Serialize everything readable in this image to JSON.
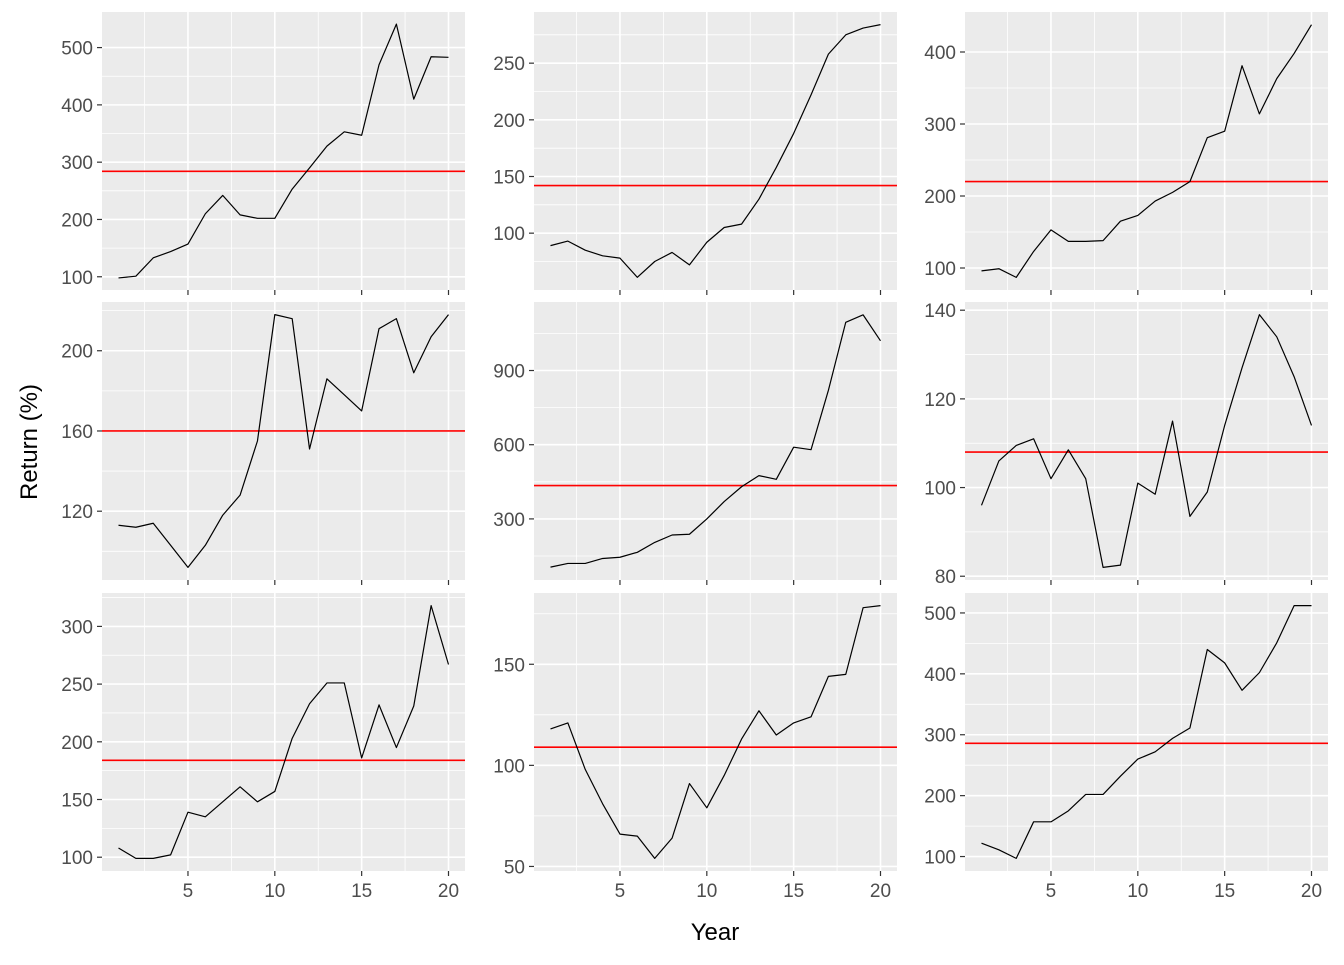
{
  "axis_titles": {
    "x": "Year",
    "y": "Return (%)"
  },
  "colors": {
    "panel_bg": "#ebebeb",
    "grid": "#ffffff",
    "line": "#000000",
    "mean_line": "#ff0000",
    "tick_text": "#4d4d4d",
    "tick_mark": "#333333"
  },
  "chart_data": [
    {
      "type": "line",
      "x": [
        1,
        2,
        3,
        4,
        5,
        6,
        7,
        8,
        9,
        10,
        11,
        12,
        13,
        14,
        15,
        16,
        17,
        18,
        19,
        20
      ],
      "y": [
        98,
        101,
        133,
        144,
        157,
        210,
        242,
        208,
        202,
        202,
        253,
        290,
        328,
        353,
        347,
        470,
        541,
        410,
        484,
        483
      ],
      "mean_line": 284,
      "xlim": [
        0.05,
        20.95
      ],
      "ylim": [
        76.9,
        562.1
      ],
      "xticks": [
        5,
        10,
        15,
        20
      ],
      "xticks_minor": [
        2.5,
        7.5,
        12.5,
        17.5
      ],
      "yticks": [
        100,
        200,
        300,
        400,
        500
      ],
      "yticks_minor": [
        150,
        250,
        350,
        450
      ],
      "ytick_labels": [
        "100",
        "200",
        "300",
        "400",
        "500"
      ],
      "xtick_labels": []
    },
    {
      "type": "line",
      "x": [
        1,
        2,
        3,
        4,
        5,
        6,
        7,
        8,
        9,
        10,
        11,
        12,
        13,
        14,
        15,
        16,
        17,
        18,
        19,
        20
      ],
      "y": [
        89,
        93,
        85,
        80,
        78,
        61,
        75,
        83,
        72,
        92,
        105,
        108,
        130,
        158,
        188,
        222,
        258,
        275,
        281,
        284
      ],
      "mean_line": 142,
      "xlim": [
        0.05,
        20.95
      ],
      "ylim": [
        49.85,
        295.15
      ],
      "xticks": [
        5,
        10,
        15,
        20
      ],
      "xticks_minor": [
        2.5,
        7.5,
        12.5,
        17.5
      ],
      "yticks": [
        100,
        150,
        200,
        250
      ],
      "yticks_minor": [
        75,
        125,
        175,
        225,
        275
      ],
      "ytick_labels": [
        "100",
        "150",
        "200",
        "250"
      ],
      "xtick_labels": []
    },
    {
      "type": "line",
      "x": [
        1,
        2,
        3,
        4,
        5,
        6,
        7,
        8,
        9,
        10,
        11,
        12,
        13,
        14,
        15,
        16,
        17,
        18,
        19,
        20
      ],
      "y": [
        96,
        99,
        87,
        123,
        153,
        137,
        137,
        138,
        165,
        173,
        193,
        205,
        220,
        281,
        290,
        381,
        314,
        363,
        398,
        438
      ],
      "mean_line": 220,
      "xlim": [
        0.05,
        20.95
      ],
      "ylim": [
        69.45,
        455.55
      ],
      "xticks": [
        5,
        10,
        15,
        20
      ],
      "xticks_minor": [
        2.5,
        7.5,
        12.5,
        17.5
      ],
      "yticks": [
        100,
        200,
        300,
        400
      ],
      "yticks_minor": [
        150,
        250,
        350
      ],
      "ytick_labels": [
        "100",
        "200",
        "300",
        "400"
      ],
      "xtick_labels": []
    },
    {
      "type": "line",
      "x": [
        1,
        2,
        3,
        4,
        5,
        6,
        7,
        8,
        9,
        10,
        11,
        12,
        13,
        14,
        15,
        16,
        17,
        18,
        19,
        20
      ],
      "y": [
        113,
        112,
        114,
        103,
        92,
        103,
        118,
        128,
        155,
        218,
        216,
        151,
        186,
        178,
        170,
        211,
        216,
        189,
        207,
        218
      ],
      "mean_line": 160,
      "xlim": [
        0.05,
        20.95
      ],
      "ylim": [
        85.7,
        224.3
      ],
      "xticks": [
        5,
        10,
        15,
        20
      ],
      "xticks_minor": [
        2.5,
        7.5,
        12.5,
        17.5
      ],
      "yticks": [
        120,
        160,
        200
      ],
      "yticks_minor": [
        100,
        140,
        180,
        220
      ],
      "ytick_labels": [
        "120",
        "160",
        "200"
      ],
      "xtick_labels": []
    },
    {
      "type": "line",
      "x": [
        1,
        2,
        3,
        4,
        5,
        6,
        7,
        8,
        9,
        10,
        11,
        12,
        13,
        14,
        15,
        16,
        17,
        18,
        19,
        20
      ],
      "y": [
        105,
        120,
        120,
        140,
        145,
        165,
        205,
        235,
        238,
        300,
        370,
        430,
        475,
        460,
        590,
        580,
        820,
        1095,
        1125,
        1020
      ],
      "mean_line": 435,
      "xlim": [
        0.05,
        20.95
      ],
      "ylim": [
        53,
        1177
      ],
      "xticks": [
        5,
        10,
        15,
        20
      ],
      "xticks_minor": [
        2.5,
        7.5,
        12.5,
        17.5
      ],
      "yticks": [
        300,
        600,
        900
      ],
      "yticks_minor": [
        150,
        450,
        750,
        1050
      ],
      "ytick_labels": [
        "300",
        "600",
        "900"
      ],
      "xtick_labels": []
    },
    {
      "type": "line",
      "x": [
        1,
        2,
        3,
        4,
        5,
        6,
        7,
        8,
        9,
        10,
        11,
        12,
        13,
        14,
        15,
        16,
        17,
        18,
        19,
        20
      ],
      "y": [
        96,
        106,
        109.5,
        111,
        102,
        108.5,
        102,
        82,
        82.5,
        101,
        98.5,
        115,
        93.5,
        99,
        114,
        127,
        139,
        134,
        125,
        114
      ],
      "mean_line": 108,
      "xlim": [
        0.05,
        20.95
      ],
      "ylim": [
        79.15,
        141.85
      ],
      "xticks": [
        5,
        10,
        15,
        20
      ],
      "xticks_minor": [
        2.5,
        7.5,
        12.5,
        17.5
      ],
      "yticks": [
        80,
        100,
        120,
        140
      ],
      "yticks_minor": [
        90,
        110,
        130
      ],
      "ytick_labels": [
        "80",
        "100",
        "120",
        "140"
      ],
      "xtick_labels": []
    },
    {
      "type": "line",
      "x": [
        1,
        2,
        3,
        4,
        5,
        6,
        7,
        8,
        9,
        10,
        11,
        12,
        13,
        14,
        15,
        16,
        17,
        18,
        19,
        20
      ],
      "y": [
        108,
        99,
        99,
        102,
        139,
        135,
        148,
        161,
        148,
        157,
        203,
        233,
        251,
        251,
        186,
        232,
        195,
        231,
        318,
        267
      ],
      "mean_line": 184,
      "xlim": [
        0.05,
        20.95
      ],
      "ylim": [
        88.05,
        328.95
      ],
      "xticks": [
        5,
        10,
        15,
        20
      ],
      "xticks_minor": [
        2.5,
        7.5,
        12.5,
        17.5
      ],
      "yticks": [
        100,
        150,
        200,
        250,
        300
      ],
      "yticks_minor": [
        125,
        175,
        225,
        275,
        325
      ],
      "ytick_labels": [
        "100",
        "150",
        "200",
        "250",
        "300"
      ],
      "xtick_labels": [
        "5",
        "10",
        "15",
        "20"
      ]
    },
    {
      "type": "line",
      "x": [
        1,
        2,
        3,
        4,
        5,
        6,
        7,
        8,
        9,
        10,
        11,
        12,
        13,
        14,
        15,
        16,
        17,
        18,
        19,
        20
      ],
      "y": [
        118,
        121,
        98,
        81,
        66,
        65,
        54,
        64,
        91,
        79,
        95,
        113,
        127,
        115,
        121,
        124,
        144,
        145,
        178,
        179
      ],
      "mean_line": 109,
      "xlim": [
        0.05,
        20.95
      ],
      "ylim": [
        47.75,
        185.25
      ],
      "xticks": [
        5,
        10,
        15,
        20
      ],
      "xticks_minor": [
        2.5,
        7.5,
        12.5,
        17.5
      ],
      "yticks": [
        50,
        100,
        150
      ],
      "yticks_minor": [
        75,
        125,
        175
      ],
      "ytick_labels": [
        "50",
        "100",
        "150"
      ],
      "xtick_labels": [
        "5",
        "10",
        "15",
        "20"
      ]
    },
    {
      "type": "line",
      "x": [
        1,
        2,
        3,
        4,
        5,
        6,
        7,
        8,
        9,
        10,
        11,
        12,
        13,
        14,
        15,
        16,
        17,
        18,
        19,
        20
      ],
      "y": [
        122,
        111,
        97,
        157,
        157,
        175,
        202,
        202,
        232,
        260,
        272,
        294,
        311,
        440,
        418,
        373,
        402,
        451,
        512,
        512
      ],
      "mean_line": 286,
      "xlim": [
        0.05,
        20.95
      ],
      "ylim": [
        76.25,
        532.75
      ],
      "xticks": [
        5,
        10,
        15,
        20
      ],
      "xticks_minor": [
        2.5,
        7.5,
        12.5,
        17.5
      ],
      "yticks": [
        100,
        200,
        300,
        400,
        500
      ],
      "yticks_minor": [
        150,
        250,
        350,
        450
      ],
      "ytick_labels": [
        "100",
        "200",
        "300",
        "400",
        "500"
      ],
      "xtick_labels": [
        "5",
        "10",
        "15",
        "20"
      ]
    }
  ]
}
